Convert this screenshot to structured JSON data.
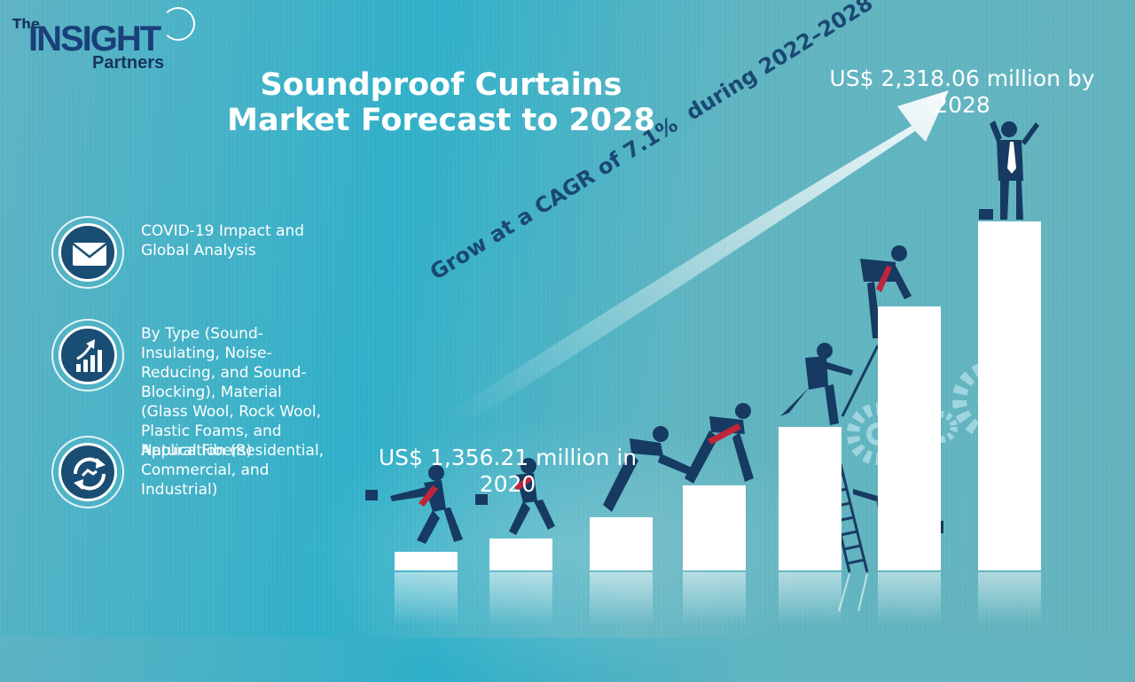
{
  "logo": {
    "the": "The",
    "insight": "INSIGHT",
    "partners": "Partners"
  },
  "title": {
    "line1": "Soundproof Curtains",
    "line2": "Market Forecast to 2028"
  },
  "items": [
    {
      "icon": "envelope-icon",
      "text": "COVID-19 Impact and Global Analysis"
    },
    {
      "icon": "growth-chart-icon",
      "text": "By Type (Sound-Insulating, Noise-Reducing, and Sound-Blocking), Material (Glass Wool, Rock Wool, Plastic Foams, and Natural Fibers)"
    },
    {
      "icon": "handshake-icon",
      "text": "Application (Residential, Commercial, and Industrial)"
    }
  ],
  "market": {
    "value_2028": "US$ 2,318.06 million by 2028",
    "value_2020": "US$ 1,356.21 million in 2020",
    "cagr": "Grow at a CAGR of 7.1%  during 2022–2028"
  },
  "colors": {
    "navy": "#1a4873",
    "icon_fill": "#1a4d74",
    "tie_red": "#c0263a"
  }
}
